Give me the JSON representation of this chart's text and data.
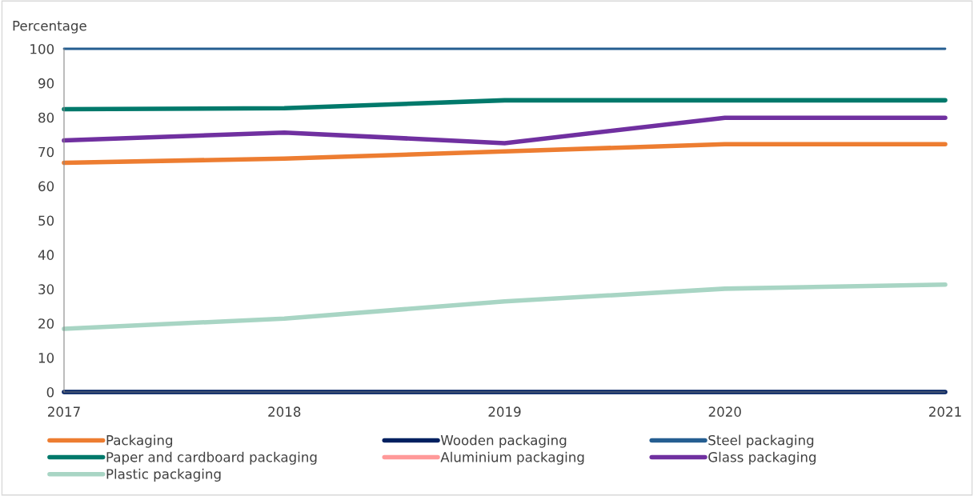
{
  "chart_data": {
    "type": "line",
    "ylabel": "Percentage",
    "x": [
      2017,
      2018,
      2019,
      2020,
      2021
    ],
    "xlim": [
      2017,
      2021
    ],
    "xticks": [
      2017,
      2018,
      2019,
      2020,
      2021
    ],
    "ylim": [
      0,
      100
    ],
    "yticks": [
      0,
      10,
      20,
      30,
      40,
      50,
      60,
      70,
      80,
      90,
      100
    ],
    "grid": false,
    "legend": "bottom",
    "marker": "none",
    "line_style": "solid",
    "series": [
      {
        "name": "Packaging",
        "color": "#ed7d31",
        "values": [
          66.8,
          68.0,
          70.1,
          72.2,
          72.2
        ]
      },
      {
        "name": "Paper and cardboard packaging",
        "color": "#00796b",
        "values": [
          82.4,
          82.7,
          85.0,
          85.0,
          85.0
        ]
      },
      {
        "name": "Plastic packaging",
        "color": "#a8d5c4",
        "values": [
          18.4,
          21.4,
          26.4,
          30.1,
          31.3
        ]
      },
      {
        "name": "Wooden packaging",
        "color": "#002060",
        "values": [
          0,
          0,
          0,
          0,
          0
        ]
      },
      {
        "name": "Aluminium packaging",
        "color": "#ff9999",
        "values": [
          null,
          null,
          null,
          null,
          null
        ]
      },
      {
        "name": "Steel packaging",
        "color": "#255e91",
        "values": [
          100,
          100,
          100,
          100,
          100
        ]
      },
      {
        "name": "Glass packaging",
        "color": "#7030a0",
        "values": [
          73.3,
          75.6,
          72.5,
          79.9,
          79.9
        ]
      }
    ]
  }
}
